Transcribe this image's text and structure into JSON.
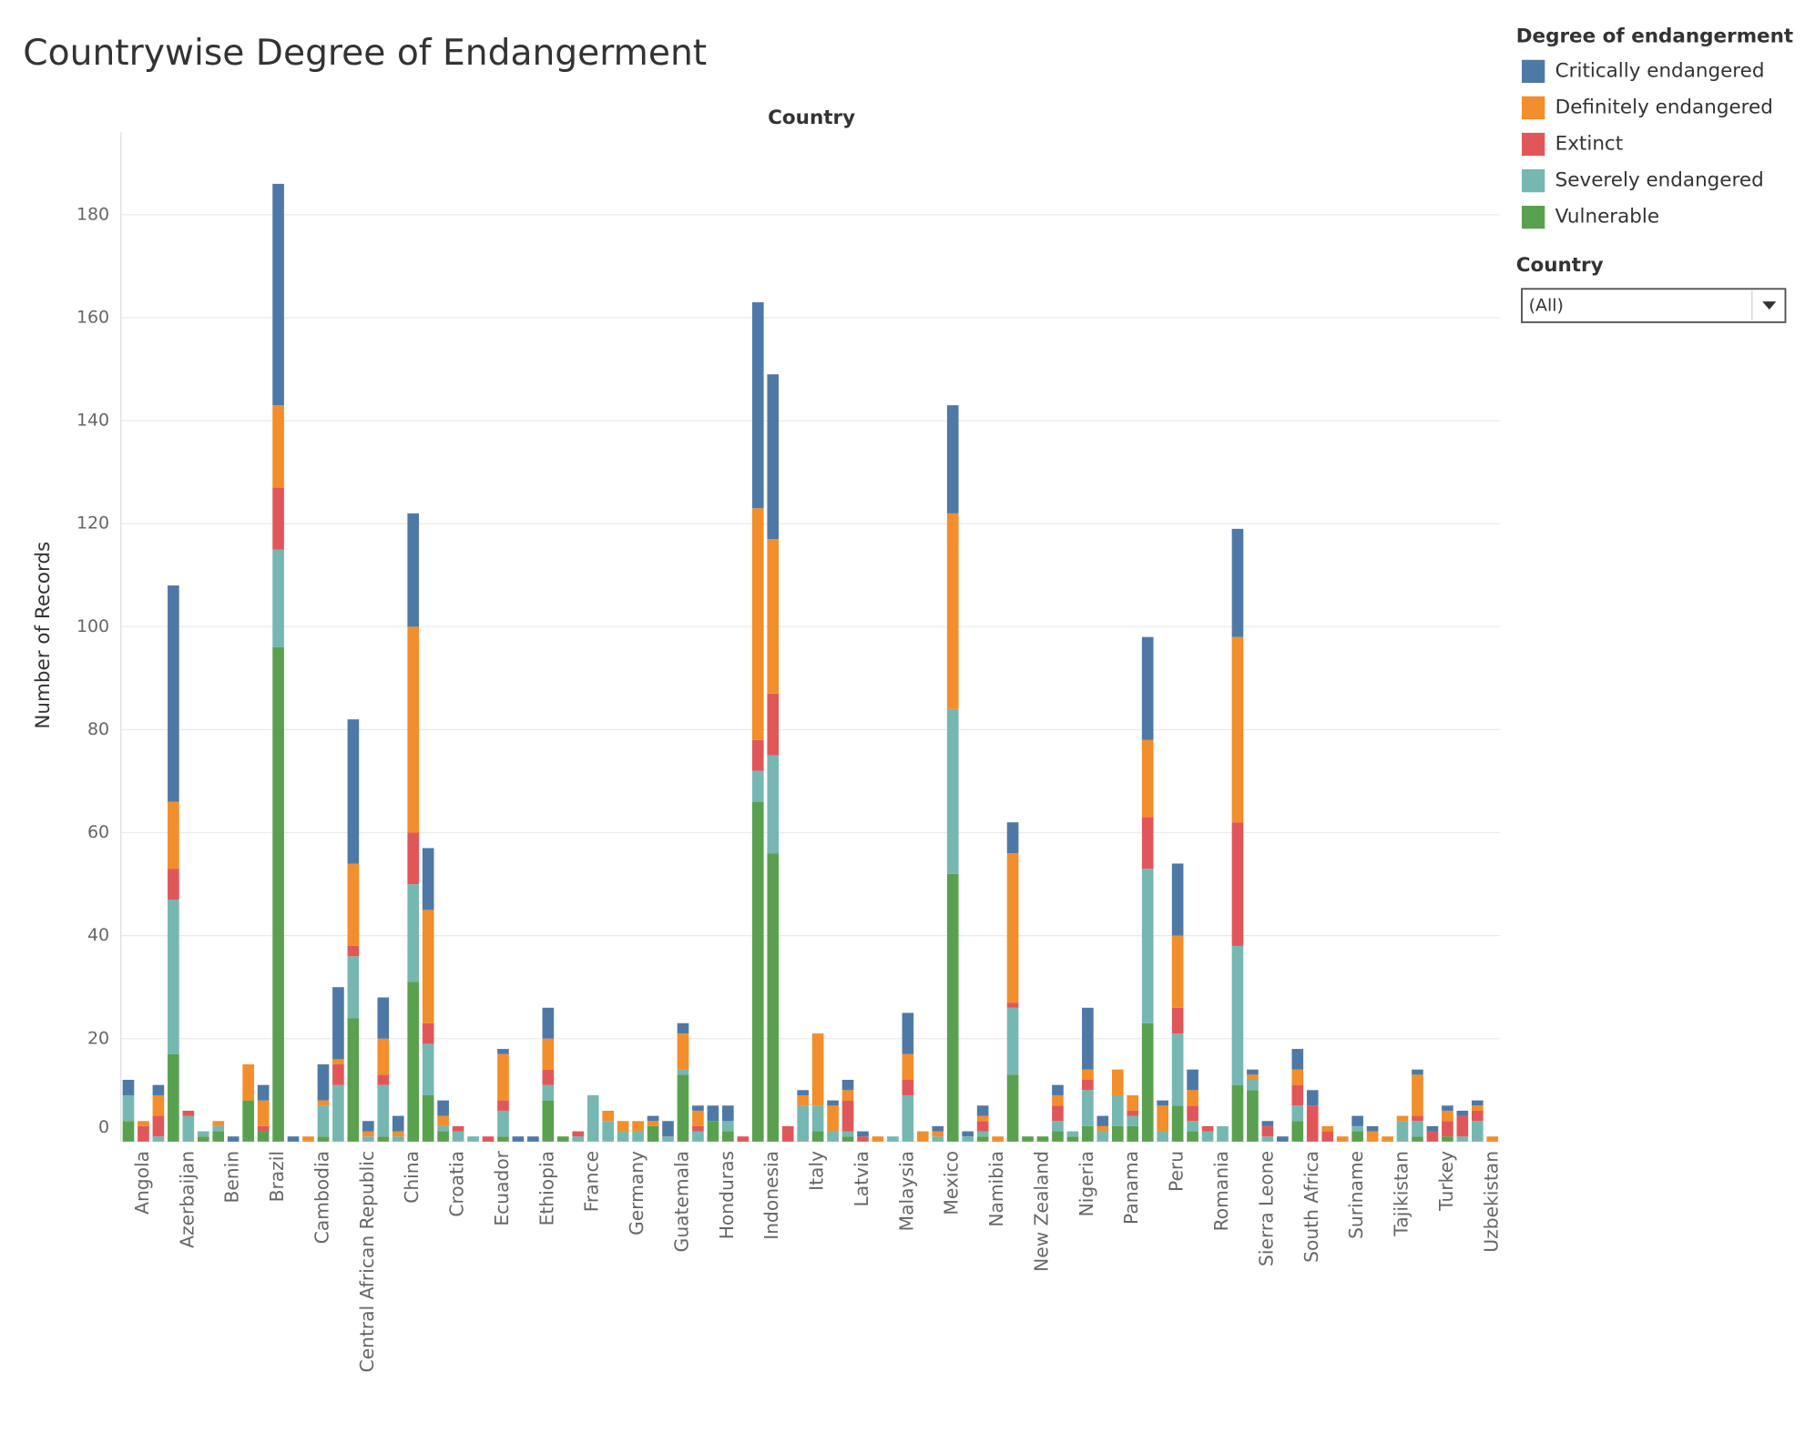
{
  "chart_data": {
    "type": "stacked_bar",
    "title": "Countrywise Degree of Endangerment",
    "x_label": "Country",
    "y_label": "Number of Records",
    "legend_title": "Degree of endangerment",
    "filter": {
      "title": "Country",
      "value": "(All)"
    },
    "categories": [
      null,
      "Angola",
      null,
      null,
      "Azerbaijan",
      null,
      null,
      "Benin",
      null,
      null,
      "Brazil",
      null,
      null,
      "Cambodia",
      null,
      null,
      "Central African Republic",
      null,
      null,
      "China",
      null,
      null,
      "Croatia",
      null,
      null,
      "Ecuador",
      null,
      null,
      "Ethiopia",
      null,
      null,
      "France",
      null,
      null,
      "Germany",
      null,
      null,
      "Guatemala",
      null,
      null,
      "Honduras",
      null,
      null,
      "Indonesia",
      null,
      null,
      "Italy",
      null,
      null,
      "Latvia",
      null,
      null,
      "Malaysia",
      null,
      null,
      "Mexico",
      null,
      null,
      "Namibia",
      null,
      null,
      "New Zealand",
      null,
      null,
      "Nigeria",
      null,
      null,
      "Panama",
      null,
      null,
      "Peru",
      null,
      null,
      "Romania",
      null,
      null,
      "Sierra Leone",
      null,
      null,
      "South Africa",
      null,
      null,
      "Suriname",
      null,
      null,
      "Tajikistan",
      null,
      null,
      "Turkey",
      null,
      null,
      "Uzbekistan"
    ],
    "series": [
      {
        "name": "Critically endangered",
        "color": "#4e79a7",
        "values": [
          3,
          0,
          2,
          42,
          0,
          0,
          0,
          1,
          0,
          3,
          43,
          1,
          0,
          7,
          14,
          28,
          2,
          8,
          3,
          22,
          12,
          3,
          0,
          0,
          0,
          1,
          1,
          1,
          6,
          0,
          0,
          0,
          0,
          0,
          0,
          1,
          3,
          2,
          1,
          3,
          3,
          0,
          40,
          32,
          0,
          1,
          0,
          1,
          2,
          1,
          0,
          0,
          8,
          0,
          1,
          21,
          1,
          2,
          0,
          6,
          0,
          0,
          2,
          0,
          12,
          2,
          0,
          0,
          20,
          1,
          14,
          4,
          0,
          0,
          21,
          1,
          1,
          1,
          4,
          3,
          0,
          0,
          2,
          1,
          0,
          0,
          1,
          1,
          1,
          1,
          1,
          0
        ]
      },
      {
        "name": "Definitely endangered",
        "color": "#f28e2b",
        "values": [
          0,
          1,
          4,
          13,
          0,
          0,
          1,
          0,
          7,
          5,
          16,
          0,
          1,
          1,
          1,
          16,
          1,
          7,
          1,
          40,
          22,
          2,
          0,
          0,
          0,
          9,
          0,
          0,
          6,
          0,
          0,
          0,
          2,
          2,
          2,
          1,
          0,
          7,
          3,
          0,
          0,
          0,
          45,
          30,
          0,
          2,
          14,
          5,
          2,
          0,
          1,
          0,
          5,
          2,
          1,
          38,
          0,
          1,
          1,
          29,
          0,
          0,
          2,
          0,
          2,
          1,
          5,
          3,
          15,
          5,
          14,
          3,
          0,
          0,
          36,
          1,
          0,
          0,
          3,
          0,
          1,
          1,
          0,
          2,
          1,
          1,
          8,
          0,
          2,
          0,
          1,
          1
        ]
      },
      {
        "name": "Extinct",
        "color": "#e15759",
        "values": [
          0,
          3,
          4,
          6,
          1,
          0,
          0,
          0,
          0,
          1,
          12,
          0,
          0,
          0,
          4,
          2,
          0,
          2,
          0,
          10,
          4,
          0,
          1,
          0,
          1,
          2,
          0,
          0,
          3,
          0,
          1,
          0,
          0,
          0,
          0,
          0,
          0,
          0,
          1,
          0,
          0,
          1,
          6,
          12,
          3,
          0,
          0,
          0,
          6,
          1,
          0,
          0,
          3,
          0,
          0,
          0,
          0,
          2,
          0,
          1,
          0,
          0,
          3,
          0,
          2,
          0,
          0,
          1,
          10,
          0,
          5,
          3,
          1,
          0,
          24,
          0,
          2,
          0,
          4,
          7,
          2,
          0,
          0,
          0,
          0,
          0,
          1,
          2,
          3,
          4,
          2,
          0
        ]
      },
      {
        "name": "Severely endangered",
        "color": "#76b7b2",
        "values": [
          5,
          0,
          1,
          30,
          5,
          1,
          1,
          0,
          0,
          0,
          19,
          0,
          0,
          6,
          11,
          12,
          1,
          10,
          1,
          19,
          10,
          1,
          2,
          1,
          0,
          5,
          0,
          0,
          3,
          0,
          1,
          9,
          4,
          2,
          2,
          0,
          1,
          1,
          2,
          0,
          2,
          0,
          6,
          19,
          0,
          7,
          5,
          2,
          1,
          0,
          0,
          1,
          9,
          0,
          1,
          32,
          1,
          1,
          0,
          13,
          0,
          0,
          2,
          1,
          7,
          2,
          6,
          2,
          30,
          2,
          14,
          2,
          2,
          3,
          27,
          2,
          1,
          0,
          3,
          0,
          0,
          0,
          1,
          0,
          0,
          4,
          3,
          0,
          0,
          1,
          4,
          0
        ]
      },
      {
        "name": "Vulnerable",
        "color": "#59a14f",
        "values": [
          4,
          0,
          0,
          17,
          0,
          1,
          2,
          0,
          8,
          2,
          96,
          0,
          0,
          1,
          0,
          24,
          0,
          1,
          0,
          31,
          9,
          2,
          0,
          0,
          0,
          1,
          0,
          0,
          8,
          1,
          0,
          0,
          0,
          0,
          0,
          3,
          0,
          13,
          0,
          4,
          2,
          0,
          66,
          56,
          0,
          0,
          2,
          0,
          1,
          0,
          0,
          0,
          0,
          0,
          0,
          52,
          0,
          1,
          0,
          13,
          1,
          1,
          2,
          1,
          3,
          0,
          3,
          3,
          23,
          0,
          7,
          2,
          0,
          0,
          11,
          10,
          0,
          0,
          4,
          0,
          0,
          0,
          2,
          0,
          0,
          0,
          1,
          0,
          1,
          0,
          0,
          0
        ]
      }
    ],
    "ylim": [
      0,
      196
    ],
    "yticks": [
      0,
      20,
      40,
      60,
      80,
      100,
      120,
      140,
      160,
      180
    ],
    "grid": true
  }
}
